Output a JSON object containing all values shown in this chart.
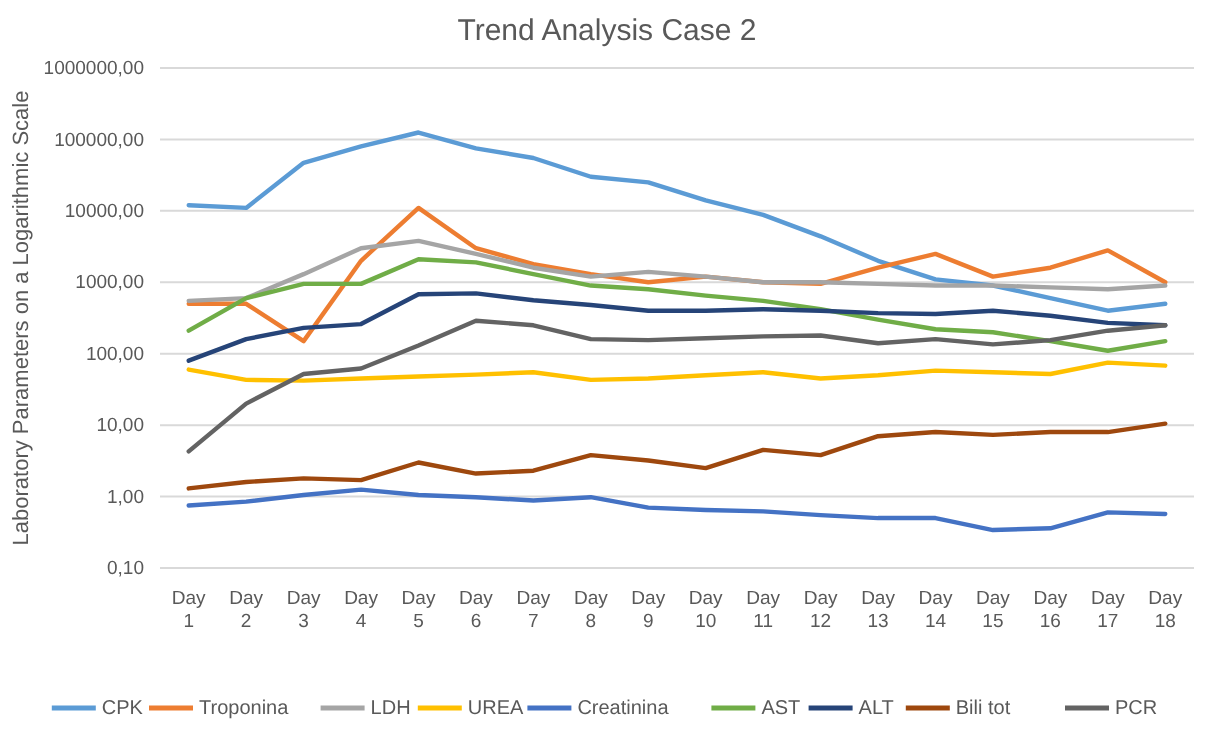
{
  "chart_data": {
    "type": "line",
    "title": "Trend Analysis Case 2",
    "ylabel": "Laboratory Parameters on a Logarithmic Scale",
    "log": true,
    "grid": "y",
    "legend": "bottom",
    "marker": "none",
    "line_style": "solid",
    "categories": [
      "Day 1",
      "Day 2",
      "Day 3",
      "Day 4",
      "Day 5",
      "Day 6",
      "Day 7",
      "Day 8",
      "Day 9",
      "Day 10",
      "Day 11",
      "Day 12",
      "Day 13",
      "Day 14",
      "Day 15",
      "Day 16",
      "Day 17",
      "Day 18"
    ],
    "ylim": [
      0.1,
      1000000
    ],
    "yticks": [
      {
        "value": 0.1,
        "label": "0,10"
      },
      {
        "value": 1,
        "label": "1,00"
      },
      {
        "value": 10,
        "label": "10,00"
      },
      {
        "value": 100,
        "label": "100,00"
      },
      {
        "value": 1000,
        "label": "1000,00"
      },
      {
        "value": 10000,
        "label": "10000,00"
      },
      {
        "value": 100000,
        "label": "100000,00"
      },
      {
        "value": 1000000,
        "label": "1000000,00"
      }
    ],
    "series": [
      {
        "name": "CPK",
        "color": "#5b9bd5",
        "values": [
          12000,
          11000,
          47000,
          80000,
          125000,
          75000,
          55000,
          30000,
          25000,
          14000,
          8800,
          4400,
          2000,
          1100,
          900,
          600,
          400,
          500
        ]
      },
      {
        "name": "Troponina",
        "color": "#ed7d31",
        "values": [
          500,
          500,
          150,
          2000,
          11000,
          3000,
          1800,
          1300,
          1000,
          1200,
          1000,
          950,
          1600,
          2500,
          1200,
          1600,
          2800,
          1000
        ]
      },
      {
        "name": "LDH",
        "color": "#a5a5a5",
        "values": [
          550,
          600,
          1300,
          3000,
          3800,
          2500,
          1600,
          1200,
          1400,
          1200,
          1000,
          1000,
          950,
          900,
          900,
          850,
          800,
          900
        ]
      },
      {
        "name": "UREA",
        "color": "#ffc000",
        "values": [
          60,
          43,
          42,
          45,
          48,
          51,
          55,
          43,
          45,
          50,
          55,
          45,
          50,
          58,
          55,
          52,
          75,
          68
        ]
      },
      {
        "name": "Creatinina",
        "color": "#4472c4",
        "values": [
          0.75,
          0.85,
          1.05,
          1.25,
          1.05,
          0.98,
          0.88,
          0.98,
          0.7,
          0.65,
          0.62,
          0.55,
          0.5,
          0.5,
          0.34,
          0.36,
          0.6,
          0.57
        ]
      },
      {
        "name": "AST",
        "color": "#70ad47",
        "values": [
          210,
          600,
          950,
          950,
          2100,
          1900,
          1300,
          900,
          800,
          650,
          550,
          420,
          300,
          220,
          200,
          150,
          110,
          150
        ]
      },
      {
        "name": "ALT",
        "color": "#264478",
        "values": [
          80,
          160,
          230,
          260,
          680,
          700,
          560,
          480,
          400,
          400,
          420,
          400,
          370,
          360,
          400,
          340,
          270,
          250
        ]
      },
      {
        "name": "Bili tot",
        "color": "#9e480e",
        "values": [
          1.3,
          1.6,
          1.8,
          1.7,
          3,
          2.1,
          2.3,
          3.8,
          3.2,
          2.5,
          4.5,
          3.8,
          7,
          8,
          7.3,
          8,
          8,
          10.5
        ]
      },
      {
        "name": "PCR",
        "color": "#636363",
        "values": [
          4.3,
          20,
          52,
          62,
          130,
          290,
          250,
          160,
          155,
          165,
          175,
          180,
          140,
          160,
          135,
          155,
          210,
          250
        ]
      }
    ]
  }
}
